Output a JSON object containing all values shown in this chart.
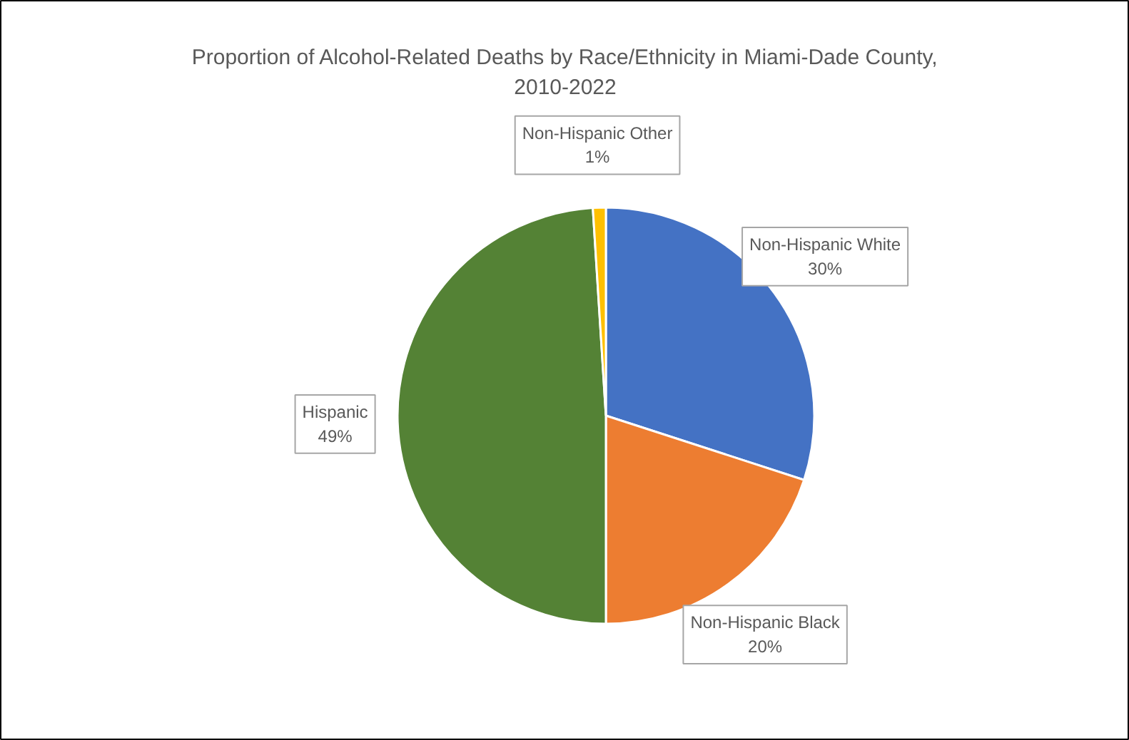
{
  "chart_data": {
    "type": "pie",
    "title": "Proportion of Alcohol-Related Deaths by Race/Ethnicity in Miami-Dade County, 2010-2022",
    "categories": [
      "Non-Hispanic White",
      "Non-Hispanic Black",
      "Hispanic",
      "Non-Hispanic Other"
    ],
    "values": [
      30,
      20,
      49,
      1
    ],
    "colors": [
      "#4472c4",
      "#ed7d31",
      "#548235",
      "#ffc000"
    ],
    "value_labels": [
      "30%",
      "20%",
      "49%",
      "1%"
    ]
  }
}
